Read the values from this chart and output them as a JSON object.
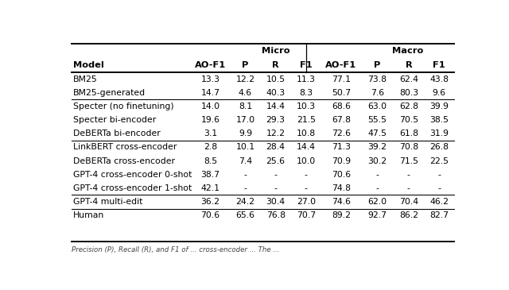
{
  "figsize": [
    6.4,
    3.65
  ],
  "dpi": 100,
  "col_headers_row2": [
    "Model",
    "AO-F1",
    "P",
    "R",
    "F1",
    "AO-F1",
    "P",
    "R",
    "F1"
  ],
  "rows": [
    [
      "BM25",
      "13.3",
      "12.2",
      "10.5",
      "11.3",
      "77.1",
      "73.8",
      "62.4",
      "43.8"
    ],
    [
      "BM25-generated",
      "14.7",
      "4.6",
      "40.3",
      "8.3",
      "50.7",
      "7.6",
      "80.3",
      "9.6"
    ],
    [
      "Specter (no finetuning)",
      "14.0",
      "8.1",
      "14.4",
      "10.3",
      "68.6",
      "63.0",
      "62.8",
      "39.9"
    ],
    [
      "Specter bi-encoder",
      "19.6",
      "17.0",
      "29.3",
      "21.5",
      "67.8",
      "55.5",
      "70.5",
      "38.5"
    ],
    [
      "DeBERTa bi-encoder",
      "3.1",
      "9.9",
      "12.2",
      "10.8",
      "72.6",
      "47.5",
      "61.8",
      "31.9"
    ],
    [
      "LinkBERT cross-encoder",
      "2.8",
      "10.1",
      "28.4",
      "14.4",
      "71.3",
      "39.2",
      "70.8",
      "26.8"
    ],
    [
      "DeBERTa cross-encoder",
      "8.5",
      "7.4",
      "25.6",
      "10.0",
      "70.9",
      "30.2",
      "71.5",
      "22.5"
    ],
    [
      "GPT-4 cross-encoder 0-shot",
      "38.7",
      "-",
      "-",
      "-",
      "70.6",
      "-",
      "-",
      "-"
    ],
    [
      "GPT-4 cross-encoder 1-shot",
      "42.1",
      "-",
      "-",
      "-",
      "74.8",
      "-",
      "-",
      "-"
    ],
    [
      "GPT-4 multi-edit",
      "36.2",
      "24.2",
      "30.4",
      "27.0",
      "74.6",
      "62.0",
      "70.4",
      "46.2"
    ],
    [
      "Human",
      "70.6",
      "65.6",
      "76.8",
      "70.7",
      "89.2",
      "92.7",
      "86.2",
      "82.7"
    ]
  ],
  "group_separators_after_rows": [
    1,
    4,
    8,
    9
  ],
  "col_aligns": [
    "left",
    "center",
    "center",
    "center",
    "center",
    "center",
    "center",
    "center",
    "center"
  ],
  "font_size": 7.8,
  "header_font_size": 8.2,
  "bg_color": "white",
  "text_color": "black",
  "line_color": "black",
  "footer_text": "Precision (P), Recall (R), and F1 of ... cross-encoder ... The ..."
}
